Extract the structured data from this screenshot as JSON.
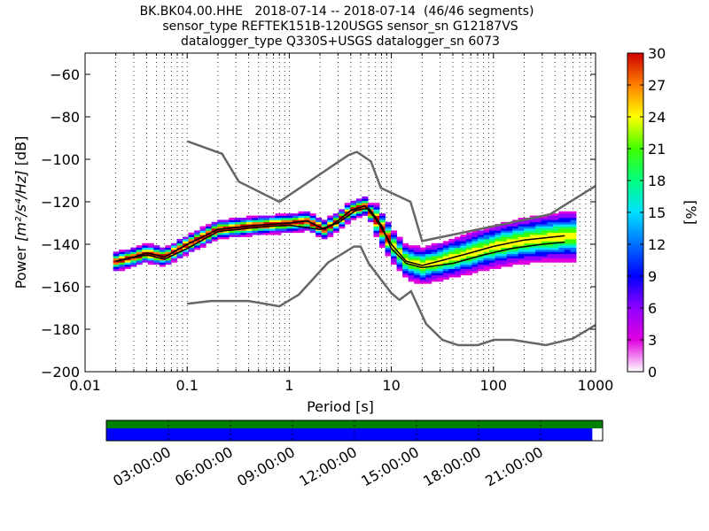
{
  "title": {
    "line1": "BK.BK04.00.HHE   2018-07-14 -- 2018-07-14  (46/46 segments)",
    "line2": "sensor_type REFTEK151B-120USGS sensor_sn G12187VS",
    "line3": "datalogger_type Q330S+USGS datalogger_sn 6073"
  },
  "chart_data": [
    {
      "type": "heatmap",
      "xlabel": "Period [s]",
      "xscale": "log",
      "xlim": [
        0.01,
        1000
      ],
      "xticks": [
        {
          "value": 0.01,
          "label": "0.01"
        },
        {
          "value": 0.1,
          "label": "0.1"
        },
        {
          "value": 1,
          "label": "1"
        },
        {
          "value": 10,
          "label": "10"
        },
        {
          "value": 100,
          "label": "100"
        },
        {
          "value": 1000,
          "label": "1000"
        }
      ],
      "ylabel_prefix": "Power ",
      "ylabel_units": "[m²/s⁴/Hz]",
      "ylabel_suffix": " [dB]",
      "ylim": [
        -200,
        -50
      ],
      "yticks": [
        -200,
        -180,
        -160,
        -140,
        -120,
        -100,
        -80,
        -60
      ],
      "ytick_labels": [
        "−200",
        "−180",
        "−160",
        "−140",
        "−120",
        "−100",
        "−80",
        "−60"
      ],
      "grid": "dotted vertical at log decades",
      "colorbar": {
        "label": "[%]",
        "range": [
          0,
          30
        ],
        "ticks": [
          0,
          3,
          6,
          9,
          12,
          15,
          18,
          21,
          24,
          27,
          30
        ],
        "colormap": "pqlx",
        "placement": "right"
      },
      "noise_models": {
        "color": "#666666",
        "nhnm": [
          [
            0.1,
            -91.5
          ],
          [
            0.22,
            -97.4
          ],
          [
            0.32,
            -110.5
          ],
          [
            0.8,
            -120
          ],
          [
            3.8,
            -98
          ],
          [
            4.6,
            -96.5
          ],
          [
            6.3,
            -101
          ],
          [
            7.9,
            -113.5
          ],
          [
            15.4,
            -120
          ],
          [
            20,
            -138.5
          ],
          [
            354.8,
            -126
          ],
          [
            1000,
            -112.5
          ]
        ],
        "nlnm": [
          [
            0.1,
            -168
          ],
          [
            0.17,
            -166.7
          ],
          [
            0.4,
            -166.7
          ],
          [
            0.8,
            -169.2
          ],
          [
            1.24,
            -163.7
          ],
          [
            2.4,
            -148.6
          ],
          [
            4.3,
            -141.1
          ],
          [
            5.0,
            -141.1
          ],
          [
            6.0,
            -149
          ],
          [
            10,
            -163
          ],
          [
            12,
            -166.2
          ],
          [
            15.6,
            -162.1
          ],
          [
            21.9,
            -177.5
          ],
          [
            31.6,
            -185
          ],
          [
            45,
            -187.5
          ],
          [
            70,
            -187.5
          ],
          [
            101,
            -185
          ],
          [
            154,
            -185
          ],
          [
            328,
            -187.5
          ],
          [
            600,
            -184.4
          ],
          [
            1000,
            -178
          ]
        ]
      },
      "mode_curve": [
        [
          0.02,
          -148
        ],
        [
          0.03,
          -146
        ],
        [
          0.04,
          -144
        ],
        [
          0.06,
          -146
        ],
        [
          0.1,
          -140
        ],
        [
          0.2,
          -133
        ],
        [
          0.5,
          -131
        ],
        [
          1,
          -130
        ],
        [
          1.5,
          -129
        ],
        [
          2.2,
          -133
        ],
        [
          3,
          -129
        ],
        [
          4,
          -124
        ],
        [
          5.5,
          -122
        ],
        [
          7,
          -128
        ],
        [
          10,
          -140
        ],
        [
          14,
          -148
        ],
        [
          20,
          -150
        ],
        [
          35,
          -147
        ],
        [
          60,
          -144
        ],
        [
          100,
          -141
        ],
        [
          200,
          -138
        ],
        [
          500,
          -136
        ]
      ],
      "mean_curve": [
        [
          0.02,
          -148
        ],
        [
          0.04,
          -145
        ],
        [
          0.06,
          -147
        ],
        [
          0.1,
          -142
        ],
        [
          0.2,
          -134
        ],
        [
          0.5,
          -132
        ],
        [
          1,
          -131
        ],
        [
          2,
          -133
        ],
        [
          3,
          -130
        ],
        [
          4.5,
          -124
        ],
        [
          6,
          -123
        ],
        [
          8,
          -131
        ],
        [
          10,
          -142
        ],
        [
          14,
          -149
        ],
        [
          20,
          -151
        ],
        [
          40,
          -149
        ],
        [
          80,
          -145
        ],
        [
          150,
          -142
        ],
        [
          300,
          -140
        ],
        [
          500,
          -139
        ]
      ],
      "density": {
        "core_path": [
          [
            0.02,
            -148
          ],
          [
            0.03,
            -146
          ],
          [
            0.04,
            -144
          ],
          [
            0.06,
            -146
          ],
          [
            0.1,
            -140
          ],
          [
            0.2,
            -133
          ],
          [
            0.5,
            -131
          ],
          [
            1,
            -130
          ],
          [
            1.5,
            -129
          ],
          [
            2.2,
            -133
          ],
          [
            3,
            -129
          ],
          [
            4,
            -124
          ],
          [
            5.5,
            -122
          ],
          [
            7,
            -128
          ],
          [
            10,
            -140
          ],
          [
            14,
            -148
          ],
          [
            20,
            -150
          ],
          [
            35,
            -147
          ],
          [
            60,
            -144
          ],
          [
            100,
            -141
          ],
          [
            200,
            -138
          ],
          [
            500,
            -136
          ],
          [
            600,
            -136
          ]
        ],
        "upper_tail": [
          [
            8,
            -120
          ],
          [
            10,
            -130
          ],
          [
            14,
            -136
          ],
          [
            20,
            -143
          ],
          [
            40,
            -142
          ],
          [
            80,
            -139
          ],
          [
            150,
            -136
          ],
          [
            300,
            -133
          ],
          [
            600,
            -131
          ]
        ],
        "lower_tail": [
          [
            8,
            -135
          ],
          [
            10,
            -147
          ],
          [
            14,
            -158
          ],
          [
            20,
            -167
          ],
          [
            30,
            -172
          ],
          [
            50,
            -168
          ],
          [
            100,
            -162
          ],
          [
            200,
            -158
          ],
          [
            300,
            -153
          ],
          [
            600,
            -148
          ]
        ]
      }
    },
    {
      "type": "timeline",
      "tick_labels": [
        "03:00:00",
        "06:00:00",
        "09:00:00",
        "12:00:00",
        "15:00:00",
        "18:00:00",
        "21:00:00"
      ],
      "tick_hours": [
        3,
        6,
        9,
        12,
        15,
        18,
        21
      ],
      "range_hours": [
        0,
        24
      ],
      "green_coverage": [
        0,
        24
      ],
      "blue_coverage": [
        0,
        23.5
      ],
      "colors": {
        "top": "#008000",
        "bottom": "#0000ff"
      }
    }
  ]
}
